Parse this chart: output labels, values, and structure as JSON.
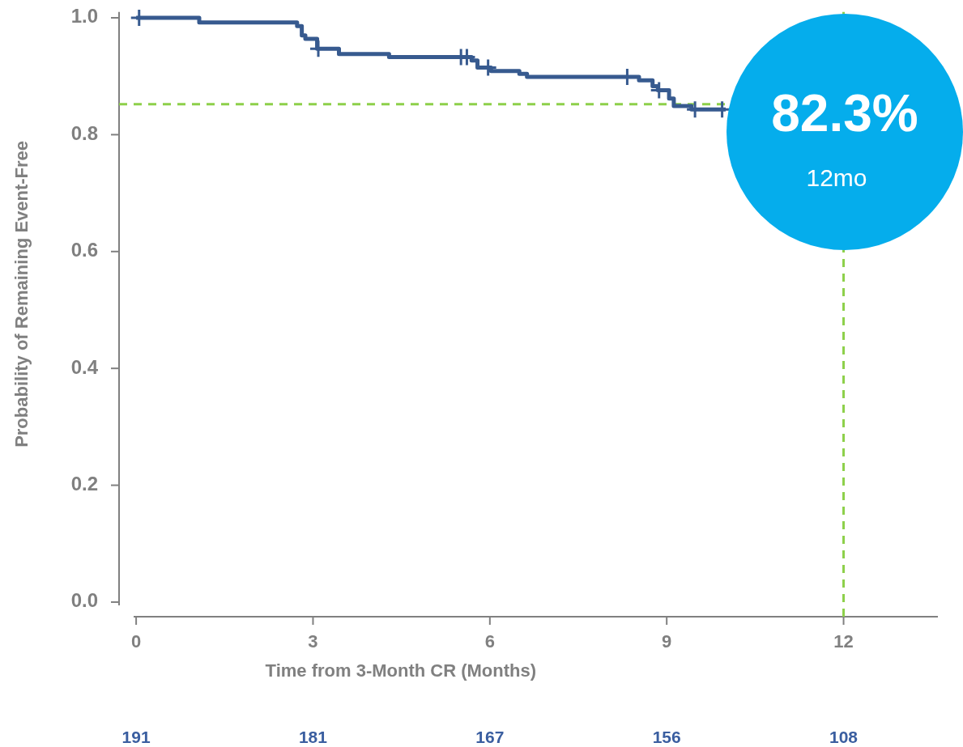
{
  "chart_data": {
    "type": "step",
    "xlabel": "Time from 3-Month CR (Months)",
    "ylabel": "Probability of Remaining Event-Free",
    "xlim": [
      -0.29,
      13.6
    ],
    "xticks": [
      0,
      3,
      6,
      9,
      12
    ],
    "ylim": [
      -0.025,
      1.01
    ],
    "yticks": [
      {
        "value": 0,
        "label": "0.0"
      },
      {
        "value": 0.2,
        "label": "0.2"
      },
      {
        "value": 0.4,
        "label": "0.4"
      },
      {
        "value": 0.6,
        "label": "0.6"
      },
      {
        "value": 0.8,
        "label": "0.8"
      },
      {
        "value": 1,
        "label": "1.0"
      }
    ],
    "grid": false,
    "series": [
      {
        "color": "#375a8f",
        "x": [
          0,
          1.07,
          2.73,
          2.81,
          2.87,
          3.07,
          3.44,
          4.29,
          5.69,
          5.79,
          6.02,
          6.5,
          6.63,
          8.53,
          8.76,
          8.85,
          9.04,
          9.12,
          9.42,
          10.0
        ],
        "values": [
          1.0,
          0.992,
          0.986,
          0.97,
          0.964,
          0.947,
          0.938,
          0.933,
          0.927,
          0.915,
          0.909,
          0.904,
          0.899,
          0.893,
          0.883,
          0.876,
          0.862,
          0.849,
          0.843,
          0.843
        ]
      },
      {
        "type": "scatter",
        "marker": "cross",
        "color": "#375a8f",
        "x": [
          0.05,
          3.09,
          5.51,
          5.61,
          5.97,
          8.33,
          8.87,
          9.48,
          9.94
        ],
        "values": [
          1.0,
          0.947,
          0.933,
          0.933,
          0.915,
          0.899,
          0.876,
          0.843,
          0.843
        ]
      }
    ],
    "ref_lines": [
      {
        "axis": "y",
        "value": 0.852,
        "color": "#8dd04a",
        "line_style": "dashed"
      },
      {
        "axis": "x",
        "value": 12,
        "color": "#8dd04a",
        "line_style": "dashed"
      }
    ],
    "annotations": [
      "82.3%",
      "12mo",
      "191",
      "181",
      "167",
      "156",
      "108"
    ]
  }
}
